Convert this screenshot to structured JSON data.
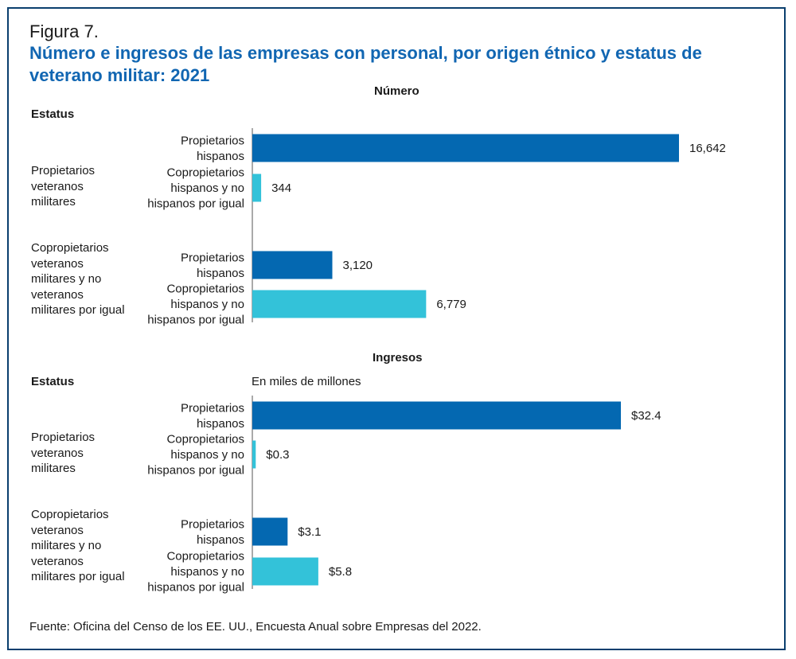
{
  "figure_label": "Figura 7.",
  "figure_title": "Número e ingresos de las empresas con personal, por origen étnico y estatus de veterano militar: 2021",
  "status_header": "Estatus",
  "source": "Fuente: Oficina del Censo de los EE. UU., Encuesta Anual sobre Empresas del 2022.",
  "colors": {
    "dark": "#0468b1",
    "light": "#33c2d9",
    "title": "#1166b2",
    "border": "#0a3f6e"
  },
  "chart_data": [
    {
      "type": "bar",
      "orientation": "horizontal",
      "title": "Número",
      "unit_note": "",
      "groups": [
        {
          "label": "Propietarios veteranos militares",
          "bars": [
            {
              "category": "Propietarios hispanos",
              "value": 16642,
              "display": "16,642",
              "color": "dark"
            },
            {
              "category": "Copropietarios hispanos y no hispanos por igual",
              "value": 344,
              "display": "344",
              "color": "light"
            }
          ]
        },
        {
          "label": "Copropietarios veteranos militares y no veteranos militares por igual",
          "bars": [
            {
              "category": "Propietarios hispanos",
              "value": 3120,
              "display": "3,120",
              "color": "dark"
            },
            {
              "category": "Copropietarios hispanos y no hispanos por igual",
              "value": 6779,
              "display": "6,779",
              "color": "light"
            }
          ]
        }
      ],
      "xlim": [
        0,
        16642
      ]
    },
    {
      "type": "bar",
      "orientation": "horizontal",
      "title": "Ingresos",
      "unit_note": "En miles de millones",
      "groups": [
        {
          "label": "Propietarios veteranos militares",
          "bars": [
            {
              "category": "Propietarios hispanos",
              "value": 32.4,
              "display": "$32.4",
              "color": "dark"
            },
            {
              "category": "Copropietarios hispanos y no hispanos por igual",
              "value": 0.3,
              "display": "$0.3",
              "color": "light"
            }
          ]
        },
        {
          "label": "Copropietarios veteranos militares y no veteranos militares por igual",
          "bars": [
            {
              "category": "Propietarios hispanos",
              "value": 3.1,
              "display": "$3.1",
              "color": "dark"
            },
            {
              "category": "Copropietarios hispanos y no hispanos por igual",
              "value": 5.8,
              "display": "$5.8",
              "color": "light"
            }
          ]
        }
      ],
      "xlim": [
        0,
        32.4
      ]
    }
  ]
}
